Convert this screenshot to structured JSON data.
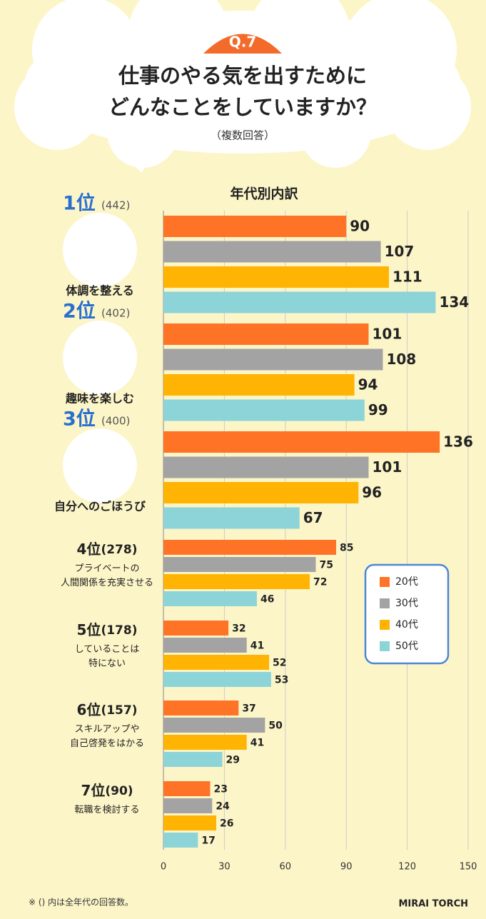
{
  "header": {
    "badge": "Q.7",
    "title_lines": [
      "仕事のやる気を出すために",
      "どんなことをしていますか？"
    ],
    "note": "（複数回答）"
  },
  "chart_data": {
    "type": "bar",
    "orientation": "horizontal",
    "subtitle": "年代別内訳",
    "ranks": [
      "1位",
      "2位",
      "3位",
      "4位",
      "5位",
      "6位",
      "7位"
    ],
    "rank_totals": [
      "(442)",
      "(402)",
      "(400)",
      "(278)",
      "(178)",
      "(157)",
      "(90)"
    ],
    "categories": [
      "体調を整える",
      "趣味を楽しむ",
      "自分へのごほうび",
      "プライベートの\n人間関係を充実させる",
      "していることは\n特にない",
      "スキルアップや\n自己啓発をはかる",
      "転職を検討する"
    ],
    "series": [
      {
        "name": "20代",
        "color": "#ff7327",
        "values": [
          90,
          101,
          136,
          85,
          32,
          37,
          23
        ]
      },
      {
        "name": "30代",
        "color": "#a3a3a3",
        "values": [
          107,
          108,
          101,
          75,
          41,
          50,
          24
        ]
      },
      {
        "name": "40代",
        "color": "#ffb302",
        "values": [
          111,
          94,
          96,
          72,
          52,
          41,
          26
        ]
      },
      {
        "name": "50代",
        "color": "#8dd4d9",
        "values": [
          134,
          99,
          67,
          46,
          53,
          29,
          17
        ]
      }
    ],
    "xlim": [
      0,
      150
    ],
    "xticks": [
      0,
      30,
      60,
      90,
      120,
      150
    ],
    "grid": true,
    "legend": "right"
  },
  "footer": {
    "note": "※ () 内は全年代の回答数。",
    "brand": "MIRAI TORCH"
  }
}
